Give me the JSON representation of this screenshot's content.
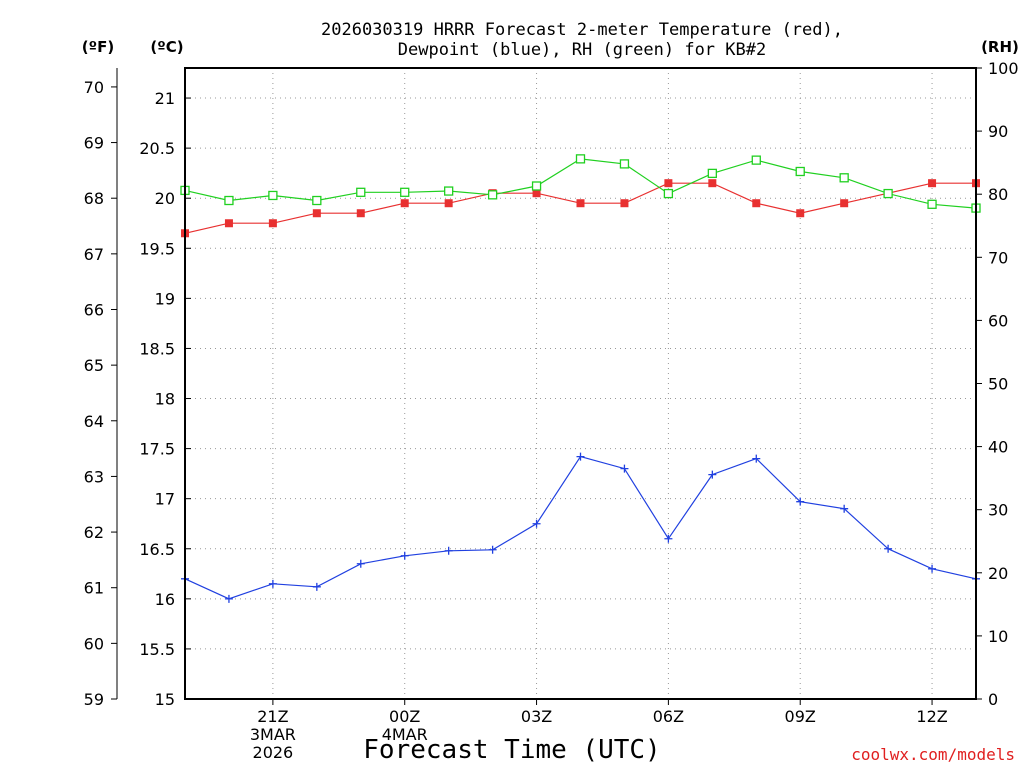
{
  "chart_data": {
    "type": "line",
    "title_line1": "2026030319 HRRR Forecast 2-meter Temperature (red),",
    "title_line2": "Dewpoint (blue), RH (green) for KB#2",
    "xlabel": "Forecast Time (UTC)",
    "credit": "coolwx.com/models",
    "left_f_unit": "(ºF)",
    "left_c_unit": "(ºC)",
    "right_unit": "(RH)",
    "x_hours": [
      19,
      20,
      21,
      22,
      23,
      24,
      25,
      26,
      27,
      28,
      29,
      30,
      31,
      32,
      33,
      34,
      35,
      36,
      37
    ],
    "x_ticks": [
      {
        "hour": 21,
        "lines": [
          "21Z",
          "3MAR",
          "2026"
        ]
      },
      {
        "hour": 24,
        "lines": [
          "00Z",
          "4MAR"
        ]
      },
      {
        "hour": 27,
        "lines": [
          "03Z"
        ]
      },
      {
        "hour": 30,
        "lines": [
          "06Z"
        ]
      },
      {
        "hour": 33,
        "lines": [
          "09Z"
        ]
      },
      {
        "hour": 36,
        "lines": [
          "12Z"
        ]
      }
    ],
    "c_axis": {
      "min": 15,
      "max": 21.3,
      "ticks": [
        "15",
        "15.5",
        "16",
        "16.5",
        "17",
        "17.5",
        "18",
        "18.5",
        "19",
        "19.5",
        "20",
        "20.5",
        "21"
      ]
    },
    "f_axis": {
      "min": 59,
      "max": 70.34,
      "ticks": [
        "59",
        "60",
        "61",
        "62",
        "63",
        "64",
        "65",
        "66",
        "67",
        "68",
        "69",
        "70"
      ]
    },
    "rh_axis": {
      "min": 0,
      "max": 100,
      "ticks": [
        "0",
        "10",
        "20",
        "30",
        "40",
        "50",
        "60",
        "70",
        "80",
        "90",
        "100"
      ]
    },
    "series": [
      {
        "name": "Temperature",
        "units": "C",
        "color": "#e83030",
        "marker": "filled-square",
        "values": [
          19.65,
          19.75,
          19.75,
          19.85,
          19.85,
          19.95,
          19.95,
          20.05,
          20.05,
          19.95,
          19.95,
          20.15,
          20.15,
          19.95,
          19.85,
          19.95,
          20.05,
          20.15,
          20.15
        ]
      },
      {
        "name": "Dewpoint",
        "units": "C",
        "color": "#2040e0",
        "marker": "plus",
        "values": [
          16.2,
          16.0,
          16.15,
          16.12,
          16.35,
          16.43,
          16.48,
          16.49,
          16.75,
          17.42,
          17.3,
          16.6,
          17.24,
          17.4,
          16.97,
          16.9,
          16.5,
          16.3,
          16.2
        ]
      },
      {
        "name": "RH",
        "units": "%",
        "color": "#20d020",
        "marker": "open-square",
        "values": [
          80.6,
          79.0,
          79.8,
          79.0,
          80.3,
          80.3,
          80.5,
          79.9,
          81.3,
          85.6,
          84.8,
          80.1,
          83.3,
          85.4,
          83.6,
          82.6,
          80.1,
          78.4,
          77.8
        ]
      }
    ]
  }
}
